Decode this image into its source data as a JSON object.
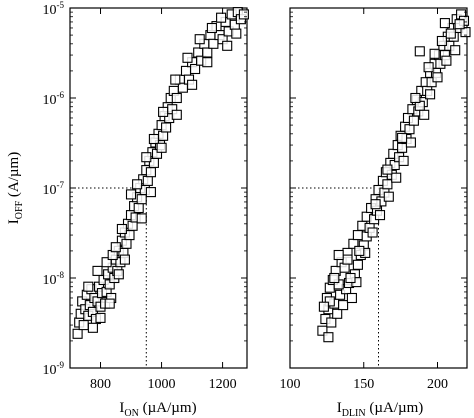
{
  "chart_data": [
    {
      "type": "scatter",
      "panel": "left",
      "xlabel": {
        "base": "I",
        "sub": "ON",
        "unit": " (µA/µm)"
      },
      "ylabel": {
        "base": "I",
        "sub": "OFF",
        "unit": " (A/µm)"
      },
      "x_scale": "linear",
      "y_scale": "log",
      "xlim": [
        700,
        1280
      ],
      "ylim": [
        1e-09,
        1e-05
      ],
      "x_ticks": [
        {
          "value": 800,
          "label": "800"
        },
        {
          "value": 1000,
          "label": "1000"
        },
        {
          "value": 1200,
          "label": "1200"
        }
      ],
      "y_ticks": [
        {
          "value": 1e-09,
          "base": "10",
          "exp": "-9"
        },
        {
          "value": 1e-08,
          "base": "10",
          "exp": "-8"
        },
        {
          "value": 1e-07,
          "base": "10",
          "exp": "-7"
        },
        {
          "value": 1e-06,
          "base": "10",
          "exp": "-6"
        },
        {
          "value": 1e-05,
          "base": "10",
          "exp": "-5"
        }
      ],
      "reference_lines": {
        "x": 950,
        "y": 1e-07
      },
      "marker": "open-square",
      "points": [
        [
          725,
          2.4e-09
        ],
        [
          730,
          3.2e-09
        ],
        [
          735,
          4e-09
        ],
        [
          740,
          5.5e-09
        ],
        [
          745,
          3e-09
        ],
        [
          750,
          4.5e-09
        ],
        [
          755,
          6.5e-09
        ],
        [
          760,
          3.8e-09
        ],
        [
          765,
          5e-09
        ],
        [
          770,
          7.5e-09
        ],
        [
          775,
          4.2e-09
        ],
        [
          780,
          6e-09
        ],
        [
          785,
          3.5e-09
        ],
        [
          790,
          5.5e-09
        ],
        [
          795,
          8e-09
        ],
        [
          800,
          4.8e-09
        ],
        [
          805,
          6.8e-09
        ],
        [
          810,
          9.5e-09
        ],
        [
          815,
          5.2e-09
        ],
        [
          820,
          7e-09
        ],
        [
          825,
          1.1e-08
        ],
        [
          830,
          8.5e-09
        ],
        [
          835,
          6e-09
        ],
        [
          840,
          1.3e-08
        ],
        [
          845,
          1e-08
        ],
        [
          850,
          1.6e-08
        ],
        [
          855,
          1.2e-08
        ],
        [
          860,
          2e-08
        ],
        [
          865,
          1.5e-08
        ],
        [
          870,
          2.6e-08
        ],
        [
          875,
          1.9e-08
        ],
        [
          880,
          3.2e-08
        ],
        [
          885,
          2.4e-08
        ],
        [
          890,
          4e-08
        ],
        [
          895,
          3e-08
        ],
        [
          900,
          5e-08
        ],
        [
          905,
          3.8e-08
        ],
        [
          910,
          6.3e-08
        ],
        [
          915,
          4.7e-08
        ],
        [
          920,
          7.9e-08
        ],
        [
          925,
          6e-08
        ],
        [
          930,
          1e-07
        ],
        [
          935,
          7.5e-08
        ],
        [
          940,
          1.25e-07
        ],
        [
          945,
          9.5e-08
        ],
        [
          950,
          1.58e-07
        ],
        [
          955,
          1.2e-07
        ],
        [
          960,
          2e-07
        ],
        [
          965,
          1.5e-07
        ],
        [
          970,
          2.5e-07
        ],
        [
          975,
          1.9e-07
        ],
        [
          980,
          3.2e-07
        ],
        [
          985,
          2.4e-07
        ],
        [
          990,
          4e-07
        ],
        [
          995,
          3e-07
        ],
        [
          1000,
          5e-07
        ],
        [
          1005,
          3.8e-07
        ],
        [
          1010,
          6.3e-07
        ],
        [
          1015,
          4.7e-07
        ],
        [
          1020,
          7.9e-07
        ],
        [
          1025,
          6e-07
        ],
        [
          1030,
          1e-06
        ],
        [
          1035,
          7.5e-07
        ],
        [
          1040,
          1.2e-06
        ],
        [
          1050,
          1e-06
        ],
        [
          1060,
          1.6e-06
        ],
        [
          1070,
          1.3e-06
        ],
        [
          1080,
          2e-06
        ],
        [
          1090,
          1.6e-06
        ],
        [
          1100,
          2.5e-06
        ],
        [
          1110,
          2.1e-06
        ],
        [
          1120,
          3.2e-06
        ],
        [
          1130,
          2.6e-06
        ],
        [
          1140,
          4e-06
        ],
        [
          1150,
          3.2e-06
        ],
        [
          1160,
          5e-06
        ],
        [
          1170,
          4e-06
        ],
        [
          1180,
          6.3e-06
        ],
        [
          1190,
          5e-06
        ],
        [
          1200,
          4.5e-06
        ],
        [
          1210,
          7e-06
        ],
        [
          1220,
          5.5e-06
        ],
        [
          1230,
          8.5e-06
        ],
        [
          1240,
          6.5e-06
        ],
        [
          1250,
          9e-06
        ],
        [
          1260,
          7.5e-06
        ],
        [
          1270,
          8.5e-06
        ],
        [
          1215,
          3.8e-06
        ],
        [
          760,
          8e-09
        ],
        [
          790,
          1.2e-08
        ],
        [
          820,
          1.5e-08
        ],
        [
          840,
          1.8e-08
        ],
        [
          850,
          2.2e-08
        ],
        [
          870,
          3.5e-08
        ],
        [
          900,
          8.5e-08
        ],
        [
          920,
          1.1e-07
        ],
        [
          950,
          2.2e-07
        ],
        [
          975,
          3.5e-07
        ],
        [
          1005,
          7e-07
        ],
        [
          1045,
          1.6e-06
        ],
        [
          1085,
          2.8e-06
        ],
        [
          1125,
          4.5e-06
        ],
        [
          1165,
          6e-06
        ],
        [
          1195,
          7.8e-06
        ],
        [
          880,
          1.6e-08
        ],
        [
          860,
          1.1e-08
        ],
        [
          830,
          5.2e-09
        ],
        [
          800,
          3.6e-09
        ],
        [
          775,
          2.8e-09
        ],
        [
          935,
          4.6e-08
        ],
        [
          965,
          9e-08
        ],
        [
          1000,
          2.8e-07
        ],
        [
          1050,
          6.5e-07
        ],
        [
          1100,
          1.4e-06
        ],
        [
          1150,
          2.5e-06
        ],
        [
          1245,
          5.2e-06
        ]
      ]
    },
    {
      "type": "scatter",
      "panel": "right",
      "xlabel": {
        "base": "I",
        "sub": "DLIN",
        "unit": " (µA/µm)"
      },
      "x_scale": "linear",
      "y_scale": "log",
      "xlim": [
        100,
        220
      ],
      "ylim": [
        1e-09,
        1e-05
      ],
      "x_ticks": [
        {
          "value": 100,
          "label": "100"
        },
        {
          "value": 150,
          "label": "150"
        },
        {
          "value": 200,
          "label": "200"
        }
      ],
      "reference_lines": {
        "x": 160,
        "y": 1e-07
      },
      "marker": "open-square",
      "points": [
        [
          122,
          2.6e-09
        ],
        [
          124,
          3.5e-09
        ],
        [
          126,
          4.5e-09
        ],
        [
          125,
          6e-09
        ],
        [
          128,
          3.2e-09
        ],
        [
          130,
          5.2e-09
        ],
        [
          127,
          7.8e-09
        ],
        [
          132,
          4e-09
        ],
        [
          134,
          6.5e-09
        ],
        [
          129,
          9.5e-09
        ],
        [
          136,
          5e-09
        ],
        [
          138,
          7.5e-09
        ],
        [
          131,
          1.2e-08
        ],
        [
          140,
          8.8e-09
        ],
        [
          142,
          6e-09
        ],
        [
          135,
          1.5e-08
        ],
        [
          144,
          1.1e-08
        ],
        [
          139,
          1.9e-08
        ],
        [
          146,
          1.4e-08
        ],
        [
          143,
          2.4e-08
        ],
        [
          148,
          1.8e-08
        ],
        [
          146,
          3e-08
        ],
        [
          150,
          2.3e-08
        ],
        [
          149,
          3.8e-08
        ],
        [
          152,
          2.9e-08
        ],
        [
          152,
          4.8e-08
        ],
        [
          154,
          3.6e-08
        ],
        [
          155,
          6e-08
        ],
        [
          157,
          4.5e-08
        ],
        [
          158,
          7.5e-08
        ],
        [
          159,
          5.6e-08
        ],
        [
          160,
          9.5e-08
        ],
        [
          162,
          7.1e-08
        ],
        [
          163,
          1.2e-07
        ],
        [
          164,
          8.9e-08
        ],
        [
          165,
          1.5e-07
        ],
        [
          166,
          1.1e-07
        ],
        [
          168,
          1.9e-07
        ],
        [
          169,
          1.4e-07
        ],
        [
          170,
          2.4e-07
        ],
        [
          171,
          1.8e-07
        ],
        [
          173,
          3e-07
        ],
        [
          174,
          2.2e-07
        ],
        [
          175,
          3.8e-07
        ],
        [
          176,
          2.8e-07
        ],
        [
          178,
          4.8e-07
        ],
        [
          179,
          3.5e-07
        ],
        [
          180,
          6e-07
        ],
        [
          181,
          4.5e-07
        ],
        [
          183,
          7.5e-07
        ],
        [
          184,
          5.6e-07
        ],
        [
          186,
          9.5e-07
        ],
        [
          187,
          7.1e-07
        ],
        [
          189,
          1.2e-06
        ],
        [
          190,
          9e-07
        ],
        [
          192,
          1.5e-06
        ],
        [
          193,
          1.2e-06
        ],
        [
          195,
          1.9e-06
        ],
        [
          196,
          1.5e-06
        ],
        [
          198,
          2.4e-06
        ],
        [
          199,
          1.9e-06
        ],
        [
          201,
          3e-06
        ],
        [
          202,
          2.4e-06
        ],
        [
          204,
          3.8e-06
        ],
        [
          205,
          3e-06
        ],
        [
          207,
          4.8e-06
        ],
        [
          208,
          3.8e-06
        ],
        [
          210,
          6e-06
        ],
        [
          211,
          4.8e-06
        ],
        [
          213,
          7.5e-06
        ],
        [
          214,
          6e-06
        ],
        [
          216,
          8.5e-06
        ],
        [
          218,
          7.2e-06
        ],
        [
          219,
          5.4e-06
        ],
        [
          206,
          2.6e-06
        ],
        [
          200,
          1.7e-06
        ],
        [
          195,
          1.1e-06
        ],
        [
          188,
          8.2e-07
        ],
        [
          182,
          3.2e-07
        ],
        [
          177,
          2e-07
        ],
        [
          172,
          1.3e-07
        ],
        [
          167,
          8e-08
        ],
        [
          161,
          5e-08
        ],
        [
          156,
          3.2e-08
        ],
        [
          151,
          1.9e-08
        ],
        [
          145,
          9e-09
        ],
        [
          141,
          1e-08
        ],
        [
          137,
          1.3e-08
        ],
        [
          133,
          8.5e-09
        ],
        [
          126,
          2.2e-09
        ],
        [
          130,
          1e-08
        ],
        [
          203,
          4.3e-06
        ],
        [
          209,
          5.2e-06
        ],
        [
          215,
          6.6e-06
        ],
        [
          198,
          3.1e-06
        ],
        [
          185,
          1e-06
        ],
        [
          176,
          3.6e-07
        ],
        [
          166,
          1.6e-07
        ],
        [
          158,
          6.6e-08
        ],
        [
          147,
          2e-08
        ],
        [
          139,
          1.6e-08
        ],
        [
          133,
          1.8e-08
        ],
        [
          127,
          5.5e-09
        ],
        [
          123,
          4.8e-09
        ],
        [
          194,
          2.2e-06
        ],
        [
          191,
          6.5e-07
        ],
        [
          205,
          6.8e-06
        ],
        [
          212,
          3.4e-06
        ],
        [
          188,
          3.3e-06
        ]
      ]
    }
  ]
}
